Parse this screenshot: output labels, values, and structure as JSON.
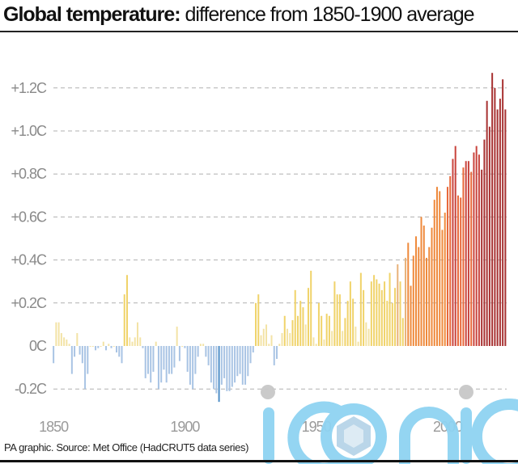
{
  "header": {
    "title_bold": "Global temperature:",
    "title_rest": " difference from 1850-1900 average"
  },
  "footer": {
    "source": "PA graphic. Source: Met Office (HadCRUT5 data series)"
  },
  "watermark": {
    "text": "iconic",
    "color": "#8fd3f2"
  },
  "chart_data": {
    "type": "bar",
    "title": "Global temperature: difference from 1850-1900 average",
    "xlabel": "",
    "ylabel": "",
    "unit": "°C",
    "ylim": [
      -0.27,
      1.27
    ],
    "grid": true,
    "y_ticks": [
      {
        "value": -0.2,
        "label": "-0.2C"
      },
      {
        "value": 0.0,
        "label": "0C"
      },
      {
        "value": 0.2,
        "label": "+0.2C"
      },
      {
        "value": 0.4,
        "label": "+0.4C"
      },
      {
        "value": 0.6,
        "label": "+0.6C"
      },
      {
        "value": 0.8,
        "label": "+0.8C"
      },
      {
        "value": 1.0,
        "label": "+1.0C"
      },
      {
        "value": 1.2,
        "label": "+1.2C"
      }
    ],
    "x_ticks": [
      {
        "value": 1850,
        "label": "1850"
      },
      {
        "value": 1900,
        "label": "1900"
      },
      {
        "value": 1950,
        "label": "1950"
      },
      {
        "value": 2000,
        "label": "2000"
      }
    ],
    "x_start": 1850,
    "x_end": 2021,
    "colors": {
      "cold": "#a9c4e4",
      "coldest": "#4f8fc7",
      "pale": "#f3e3a6",
      "yellow": "#f0d36a",
      "tan": "#e8b27a",
      "orange": "#ef8a3c",
      "orange_red": "#e8683a",
      "red": "#c9443d",
      "dark_red": "#a83232"
    },
    "values": [
      -0.08,
      0.11,
      0.11,
      0.06,
      0.04,
      0.03,
      0.01,
      -0.13,
      -0.05,
      0.06,
      -0.04,
      -0.08,
      -0.2,
      -0.13,
      0.0,
      0.0,
      -0.02,
      -0.01,
      0.0,
      0.02,
      -0.02,
      0.01,
      -0.01,
      0.0,
      -0.03,
      -0.05,
      -0.08,
      0.24,
      0.33,
      0.04,
      0.02,
      0.04,
      0.11,
      0.04,
      -0.01,
      -0.15,
      -0.13,
      -0.17,
      -0.12,
      0.02,
      -0.2,
      -0.17,
      -0.11,
      -0.17,
      -0.13,
      -0.13,
      -0.1,
      0.09,
      -0.07,
      0.0,
      -0.01,
      -0.12,
      -0.18,
      -0.2,
      -0.13,
      -0.05,
      0.01,
      0.01,
      -0.05,
      -0.09,
      -0.17,
      -0.2,
      -0.22,
      -0.26,
      -0.18,
      -0.15,
      -0.21,
      -0.21,
      -0.19,
      -0.17,
      -0.14,
      -0.13,
      -0.18,
      -0.18,
      -0.14,
      -0.08,
      -0.03,
      0.2,
      0.24,
      0.05,
      0.08,
      0.1,
      0.01,
      0.05,
      -0.09,
      -0.06,
      0.01,
      0.06,
      0.14,
      0.08,
      0.06,
      0.12,
      0.26,
      0.14,
      0.21,
      0.18,
      0.1,
      0.27,
      0.35,
      0.04,
      0.01,
      0.2,
      0.14,
      0.03,
      0.15,
      0.14,
      0.07,
      0.3,
      0.24,
      0.24,
      0.07,
      0.13,
      0.21,
      0.3,
      0.22,
      0.09,
      0.02,
      0.34,
      0.26,
      0.11,
      0.08,
      0.3,
      0.33,
      0.31,
      0.29,
      0.26,
      0.3,
      0.21,
      0.34,
      0.2,
      0.27,
      0.38,
      0.3,
      0.13,
      0.41,
      0.48,
      0.28,
      0.42,
      0.51,
      0.46,
      0.6,
      0.56,
      0.41,
      0.46,
      0.55,
      0.68,
      0.74,
      0.72,
      0.54,
      0.62,
      0.74,
      0.79,
      0.87,
      0.93,
      0.7,
      0.69,
      0.83,
      0.86,
      0.86,
      0.81,
      0.9,
      0.93,
      0.89,
      0.82,
      0.96,
      1.14,
      1.02,
      1.27,
      1.2,
      1.1,
      1.15,
      1.24,
      1.1
    ]
  }
}
